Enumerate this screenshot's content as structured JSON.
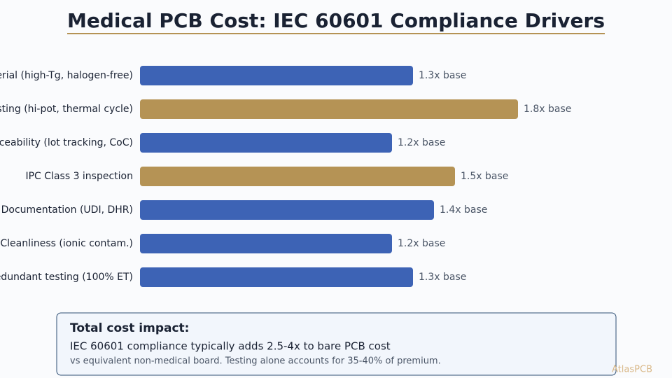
{
  "chart_data": {
    "type": "hbar",
    "title": "Medical PCB Cost: IEC 60601 Compliance Drivers",
    "categories": [
      "erial (high-Tg, halogen-free)",
      "sting (hi-pot, thermal cycle)",
      "ceability (lot tracking, CoC)",
      "IPC Class 3 inspection",
      "Documentation (UDI, DHR)",
      "Cleanliness (ionic contam.)",
      "edundant testing (100% ET)"
    ],
    "values": [
      1.3,
      1.8,
      1.2,
      1.5,
      1.4,
      1.2,
      1.3
    ],
    "value_labels": [
      "1.3x base",
      "1.8x base",
      "1.2x base",
      "1.5x base",
      "1.4x base",
      "1.2x base",
      "1.3x base"
    ],
    "colors": [
      "#3d63b5",
      "#b59355",
      "#3d63b5",
      "#b59355",
      "#3d63b5",
      "#3d63b5",
      "#3d63b5"
    ],
    "note_title": "Total cost impact:",
    "note_text": "IEC 60601 compliance typically adds 2.5-4x to bare PCB cost",
    "note_subtext": "vs equivalent non-medical board. Testing alone accounts for 35-40% of premium.",
    "watermark": "AtlasPCB"
  }
}
